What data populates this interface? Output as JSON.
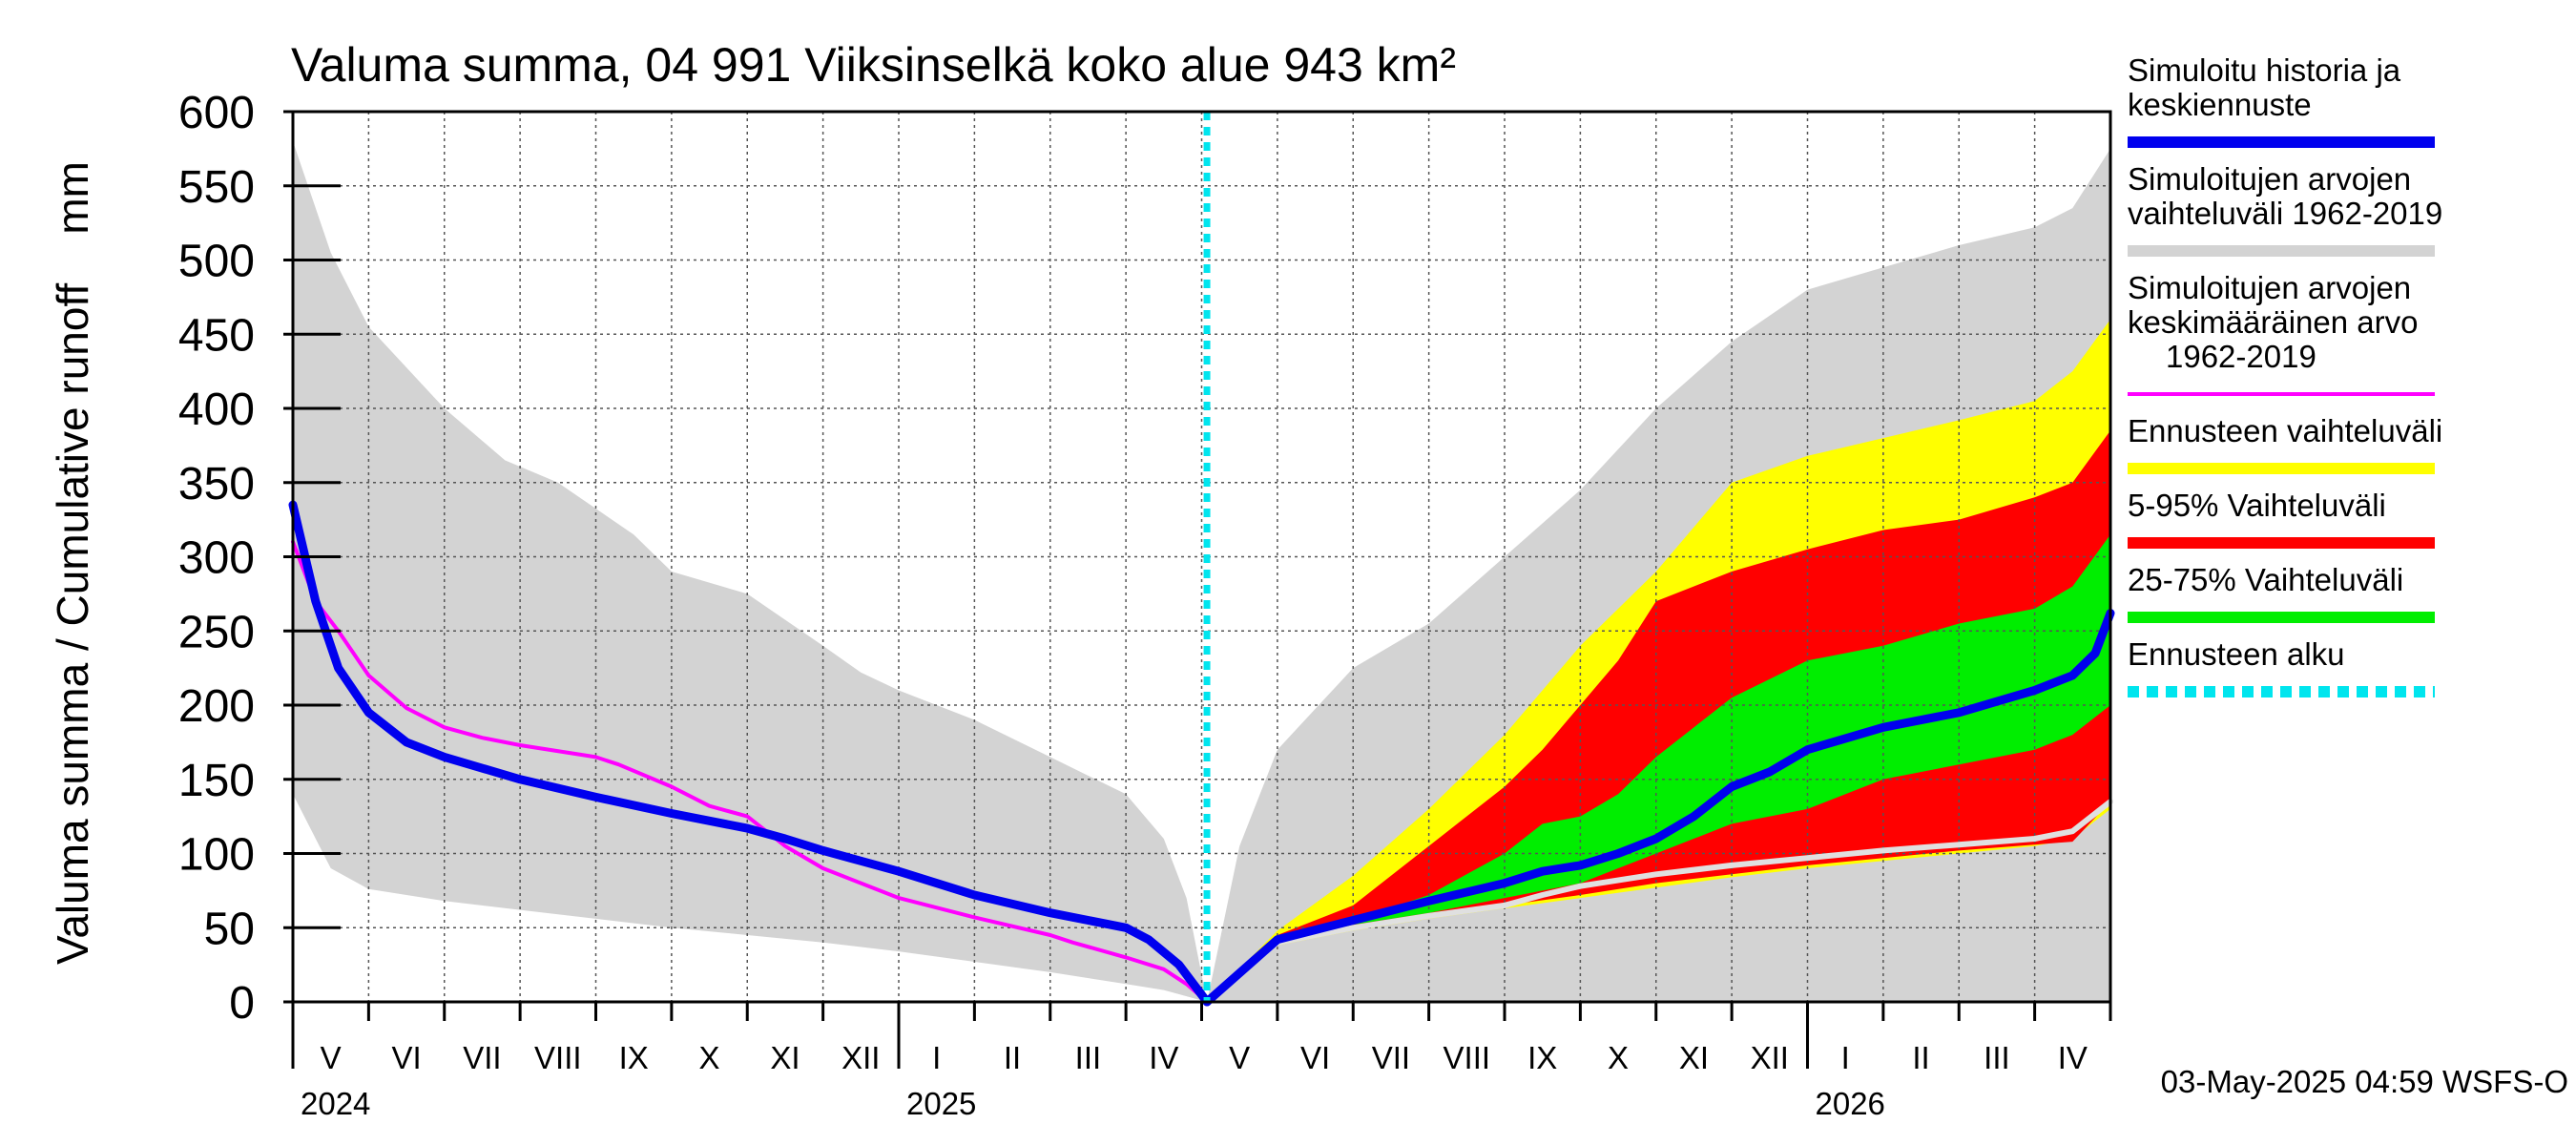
{
  "chart_data": {
    "type": "area",
    "title": "Valuma summa, 04 991 Viiksinselkä koko alue 943 km²",
    "ylabel": "Valuma summa / Cumulative runoff    mm",
    "ylim": [
      0,
      600
    ],
    "yticks": [
      "0",
      "50",
      "100",
      "150",
      "200",
      "250",
      "300",
      "350",
      "400",
      "450",
      "500",
      "550",
      "600"
    ],
    "x_unit": "months since start of May 2024",
    "xlim": [
      0,
      24
    ],
    "forecast_start": 12.07,
    "months": [
      "V",
      "VI",
      "VII",
      "VIII",
      "IX",
      "X",
      "XI",
      "XII",
      "I",
      "II",
      "III",
      "IV",
      "V",
      "VI",
      "VII",
      "VIII",
      "IX",
      "X",
      "XI",
      "XII",
      "I",
      "II",
      "III",
      "IV"
    ],
    "years": [
      {
        "label": "2024",
        "x": 0
      },
      {
        "label": "2025",
        "x": 8
      },
      {
        "label": "2026",
        "x": 20
      }
    ],
    "timestamp": "03-May-2025 04:59 WSFS-O",
    "legend": [
      {
        "label": "Simuloitu historia ja keskiennuste",
        "lines": [
          "Simuloitu historia ja",
          "keskiennuste"
        ],
        "color": "#0000ee",
        "style": "line"
      },
      {
        "label": "Simuloitujen arvojen vaihteluväli 1962-2019",
        "lines": [
          "Simuloitujen arvojen",
          "vaihteluväli 1962-2019"
        ],
        "color": "#d3d3d3",
        "style": "line"
      },
      {
        "label": "Simuloitujen arvojen keskimääräinen arvo 1962-2019",
        "lines": [
          "Simuloitujen arvojen",
          "keskimääräinen arvo",
          "1962-2019"
        ],
        "color": "#ff00ff",
        "style": "thin"
      },
      {
        "label": "Ennusteen vaihteluväli",
        "lines": [
          "Ennusteen vaihteluväli"
        ],
        "color": "#ffff00",
        "style": "line"
      },
      {
        "label": "5-95% Vaihteluväli",
        "lines": [
          "5-95% Vaihteluväli"
        ],
        "color": "#ff0000",
        "style": "line"
      },
      {
        "label": "25-75% Vaihteluväli",
        "lines": [
          "25-75% Vaihteluväli"
        ],
        "color": "#00ee00",
        "style": "line"
      },
      {
        "label": "Ennusteen alku",
        "lines": [
          "Ennusteen alku"
        ],
        "color": "#00e5ee",
        "style": "dashed"
      }
    ],
    "series": [
      {
        "name": "hist_range_upper",
        "role": "band_upper",
        "color": "#d3d3d3",
        "x": [
          0,
          0.5,
          1,
          2,
          2.8,
          3.5,
          4.5,
          5,
          6,
          7,
          7.5,
          8,
          9,
          10,
          11,
          11.5,
          11.8,
          12.07
        ],
        "values": [
          580,
          505,
          455,
          400,
          365,
          350,
          315,
          290,
          275,
          240,
          222,
          210,
          190,
          165,
          140,
          110,
          70,
          0
        ]
      },
      {
        "name": "hist_range_lower",
        "role": "band_lower",
        "color": "#d3d3d3",
        "x": [
          0,
          0.5,
          1,
          2,
          3,
          4,
          5,
          6,
          7,
          8,
          9,
          10,
          11,
          11.5,
          12.07
        ],
        "values": [
          140,
          90,
          76,
          68,
          62,
          56,
          50,
          45,
          40,
          34,
          27,
          20,
          12,
          8,
          0
        ]
      },
      {
        "name": "sim_mean",
        "role": "line",
        "color": "#ff00ff",
        "x": [
          0,
          0.3,
          0.6,
          1,
          1.5,
          2,
          2.5,
          3,
          4,
          4.3,
          5,
          5.5,
          6,
          6.5,
          7,
          8,
          9,
          10,
          10.3,
          11,
          11.5,
          11.8,
          12.07
        ],
        "values": [
          310,
          270,
          250,
          220,
          198,
          185,
          178,
          173,
          165,
          160,
          145,
          132,
          125,
          105,
          90,
          70,
          57,
          45,
          40,
          30,
          22,
          12,
          0
        ]
      },
      {
        "name": "sim_history",
        "role": "line",
        "color": "#0000ee",
        "x": [
          0,
          0.3,
          0.6,
          1,
          1.5,
          2,
          3,
          4,
          5,
          6,
          6.5,
          7,
          7.5,
          8,
          9,
          10,
          11,
          11.3,
          11.7,
          12.07
        ],
        "values": [
          335,
          270,
          225,
          195,
          175,
          165,
          150,
          138,
          127,
          117,
          110,
          102,
          95,
          88,
          72,
          60,
          50,
          42,
          25,
          0
        ]
      },
      {
        "name": "forecast_range_upper",
        "role": "band_upper",
        "color": "#ffff00",
        "x": [
          12.07,
          13,
          14,
          15,
          16,
          17,
          18,
          19,
          20,
          21,
          22,
          23,
          23.5,
          24
        ],
        "values": [
          0,
          48,
          85,
          130,
          180,
          240,
          290,
          350,
          368,
          380,
          392,
          405,
          425,
          460
        ]
      },
      {
        "name": "forecast_range_lower",
        "role": "band_lower",
        "color": "#ffff00",
        "x": [
          12.07,
          13,
          14,
          15,
          16,
          17,
          18,
          19,
          20,
          21,
          22,
          23,
          23.5,
          24
        ],
        "values": [
          0,
          38,
          48,
          56,
          63,
          70,
          77,
          84,
          90,
          95,
          100,
          105,
          110,
          130
        ]
      },
      {
        "name": "p95",
        "role": "band_upper",
        "color": "#ff0000",
        "x": [
          12.07,
          13,
          14,
          15,
          16,
          16.5,
          17,
          17.5,
          18,
          19,
          20,
          21,
          22,
          23,
          23.5,
          24
        ],
        "values": [
          0,
          45,
          65,
          105,
          145,
          170,
          200,
          230,
          270,
          290,
          305,
          318,
          325,
          340,
          350,
          385
        ]
      },
      {
        "name": "p5",
        "role": "band_lower",
        "color": "#ff0000",
        "x": [
          12.07,
          13,
          14,
          15,
          16,
          17,
          18,
          19,
          20,
          21,
          22,
          23,
          23.5,
          24
        ],
        "values": [
          0,
          40,
          50,
          58,
          65,
          72,
          80,
          86,
          92,
          97,
          102,
          106,
          108,
          135
        ]
      },
      {
        "name": "p75",
        "role": "band_upper",
        "color": "#00ee00",
        "x": [
          12.07,
          13,
          14,
          15,
          16,
          16.5,
          17,
          17.5,
          18,
          19,
          20,
          21,
          22,
          23,
          23.5,
          24
        ],
        "values": [
          0,
          42,
          55,
          72,
          100,
          120,
          125,
          140,
          165,
          205,
          230,
          240,
          255,
          265,
          280,
          315
        ]
      },
      {
        "name": "p25",
        "role": "band_lower",
        "color": "#00ee00",
        "x": [
          12.07,
          13,
          14,
          15,
          16,
          17,
          17.5,
          18,
          19,
          20,
          21,
          22,
          23,
          23.5,
          24
        ],
        "values": [
          0,
          40,
          52,
          60,
          70,
          80,
          90,
          100,
          120,
          130,
          150,
          160,
          170,
          180,
          200
        ]
      },
      {
        "name": "forecast_median",
        "role": "line",
        "color": "#0000ee",
        "x": [
          12.07,
          13,
          14,
          15,
          16,
          16.5,
          17,
          17.5,
          18,
          18.5,
          19,
          19.5,
          20,
          21,
          22,
          23,
          23.5,
          23.8,
          24
        ],
        "values": [
          0,
          42,
          55,
          68,
          80,
          88,
          92,
          100,
          110,
          125,
          145,
          155,
          170,
          185,
          195,
          210,
          220,
          235,
          262
        ]
      },
      {
        "name": "forecast_low_line",
        "role": "line",
        "color": "#e0e0e0",
        "x": [
          12.07,
          13,
          14,
          15,
          16,
          16.5,
          17,
          18,
          19,
          20,
          21,
          22,
          23,
          23.5,
          24
        ],
        "values": [
          0,
          40,
          50,
          58,
          65,
          72,
          78,
          86,
          92,
          97,
          102,
          106,
          110,
          115,
          135
        ]
      }
    ]
  }
}
